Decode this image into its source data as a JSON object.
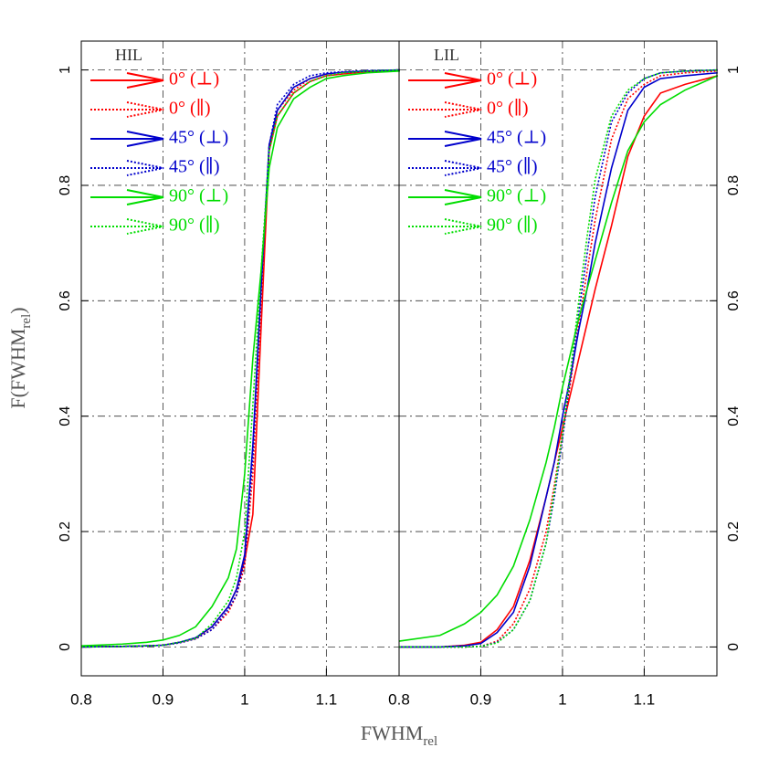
{
  "x_label": "FWHM",
  "x_label_sub": "rel",
  "y_label": [
    "F(FWHM",
    "rel",
    ")"
  ],
  "chart_data": [
    {
      "type": "line",
      "title": "HIL",
      "y_tick_side": "left",
      "grid": true,
      "xlim": [
        0.8,
        1.189
      ],
      "ylim": [
        -0.05,
        1.05
      ],
      "xticks": [
        0.8,
        0.9,
        1,
        1.1
      ],
      "yticks": [
        0,
        0.2,
        0.4,
        0.6,
        0.8,
        1
      ],
      "x": [
        0.8,
        0.85,
        0.88,
        0.9,
        0.92,
        0.94,
        0.96,
        0.98,
        0.99,
        1.0,
        1.01,
        1.02,
        1.03,
        1.04,
        1.06,
        1.08,
        1.1,
        1.12,
        1.15,
        1.19
      ],
      "series": [
        {
          "name": "0° (⊥)",
          "color": "#ff0000",
          "dash": "solid",
          "values": [
            0,
            0.001,
            0.002,
            0.003,
            0.008,
            0.015,
            0.035,
            0.07,
            0.1,
            0.15,
            0.23,
            0.55,
            0.86,
            0.92,
            0.96,
            0.98,
            0.99,
            0.993,
            0.997,
            1.0
          ]
        },
        {
          "name": "0° (∥)",
          "color": "#ff0000",
          "dash": "dotted",
          "values": [
            0,
            0.001,
            0.002,
            0.003,
            0.007,
            0.014,
            0.03,
            0.06,
            0.09,
            0.14,
            0.3,
            0.6,
            0.87,
            0.93,
            0.965,
            0.985,
            0.993,
            0.996,
            0.998,
            1.0
          ]
        },
        {
          "name": "45° (⊥)",
          "color": "#0000cc",
          "dash": "solid",
          "values": [
            0,
            0.001,
            0.002,
            0.003,
            0.008,
            0.016,
            0.035,
            0.07,
            0.1,
            0.16,
            0.35,
            0.62,
            0.87,
            0.93,
            0.97,
            0.985,
            0.993,
            0.996,
            0.998,
            1.0
          ]
        },
        {
          "name": "45° (∥)",
          "color": "#0000cc",
          "dash": "dotted",
          "values": [
            0,
            0.001,
            0.002,
            0.003,
            0.007,
            0.014,
            0.03,
            0.065,
            0.09,
            0.15,
            0.33,
            0.62,
            0.87,
            0.94,
            0.975,
            0.99,
            0.995,
            0.997,
            0.999,
            1.0
          ]
        },
        {
          "name": "90° (⊥)",
          "color": "#00dd00",
          "dash": "solid",
          "values": [
            0.002,
            0.005,
            0.008,
            0.012,
            0.02,
            0.035,
            0.07,
            0.12,
            0.17,
            0.3,
            0.5,
            0.65,
            0.83,
            0.9,
            0.95,
            0.97,
            0.985,
            0.99,
            0.995,
            0.998
          ]
        },
        {
          "name": "90° (∥)",
          "color": "#00dd00",
          "dash": "dotted",
          "values": [
            0,
            0.001,
            0.002,
            0.003,
            0.008,
            0.015,
            0.04,
            0.08,
            0.12,
            0.2,
            0.42,
            0.65,
            0.86,
            0.92,
            0.96,
            0.98,
            0.99,
            0.995,
            0.998,
            1.0
          ]
        }
      ]
    },
    {
      "type": "line",
      "title": "LIL",
      "y_tick_side": "right",
      "grid": true,
      "xlim": [
        0.8,
        1.189
      ],
      "ylim": [
        -0.05,
        1.05
      ],
      "xticks": [
        0.8,
        0.9,
        1,
        1.1
      ],
      "yticks": [
        0,
        0.2,
        0.4,
        0.6,
        0.8,
        1
      ],
      "x": [
        0.8,
        0.85,
        0.88,
        0.9,
        0.92,
        0.94,
        0.96,
        0.98,
        0.99,
        1.0,
        1.01,
        1.02,
        1.03,
        1.04,
        1.06,
        1.08,
        1.1,
        1.12,
        1.15,
        1.19
      ],
      "series": [
        {
          "name": "0° (⊥)",
          "color": "#ff0000",
          "dash": "solid",
          "values": [
            0,
            0,
            0.003,
            0.008,
            0.03,
            0.07,
            0.15,
            0.26,
            0.32,
            0.38,
            0.44,
            0.5,
            0.56,
            0.62,
            0.73,
            0.85,
            0.92,
            0.96,
            0.975,
            0.99
          ]
        },
        {
          "name": "0° (∥)",
          "color": "#ff0000",
          "dash": "dotted",
          "values": [
            0,
            0,
            0,
            0.001,
            0.01,
            0.04,
            0.1,
            0.2,
            0.28,
            0.37,
            0.46,
            0.56,
            0.65,
            0.74,
            0.88,
            0.95,
            0.975,
            0.99,
            0.995,
            0.998
          ]
        },
        {
          "name": "45° (⊥)",
          "color": "#0000cc",
          "dash": "solid",
          "values": [
            0,
            0,
            0.002,
            0.006,
            0.025,
            0.06,
            0.14,
            0.26,
            0.32,
            0.4,
            0.47,
            0.55,
            0.62,
            0.7,
            0.83,
            0.93,
            0.97,
            0.985,
            0.99,
            0.995
          ]
        },
        {
          "name": "45° (∥)",
          "color": "#0000cc",
          "dash": "dotted",
          "values": [
            0,
            0,
            0,
            0.001,
            0.008,
            0.03,
            0.08,
            0.18,
            0.26,
            0.36,
            0.47,
            0.58,
            0.68,
            0.78,
            0.91,
            0.96,
            0.985,
            0.995,
            0.998,
            1.0
          ]
        },
        {
          "name": "90° (⊥)",
          "color": "#00dd00",
          "dash": "solid",
          "values": [
            0.01,
            0.02,
            0.04,
            0.06,
            0.09,
            0.14,
            0.22,
            0.32,
            0.38,
            0.45,
            0.51,
            0.57,
            0.62,
            0.67,
            0.77,
            0.86,
            0.91,
            0.94,
            0.965,
            0.99
          ]
        },
        {
          "name": "90° (∥)",
          "color": "#00dd00",
          "dash": "dotted",
          "values": [
            0,
            0,
            0,
            0.001,
            0.007,
            0.03,
            0.08,
            0.18,
            0.27,
            0.37,
            0.48,
            0.6,
            0.71,
            0.81,
            0.92,
            0.965,
            0.985,
            0.995,
            0.998,
            1.0
          ]
        }
      ]
    }
  ]
}
